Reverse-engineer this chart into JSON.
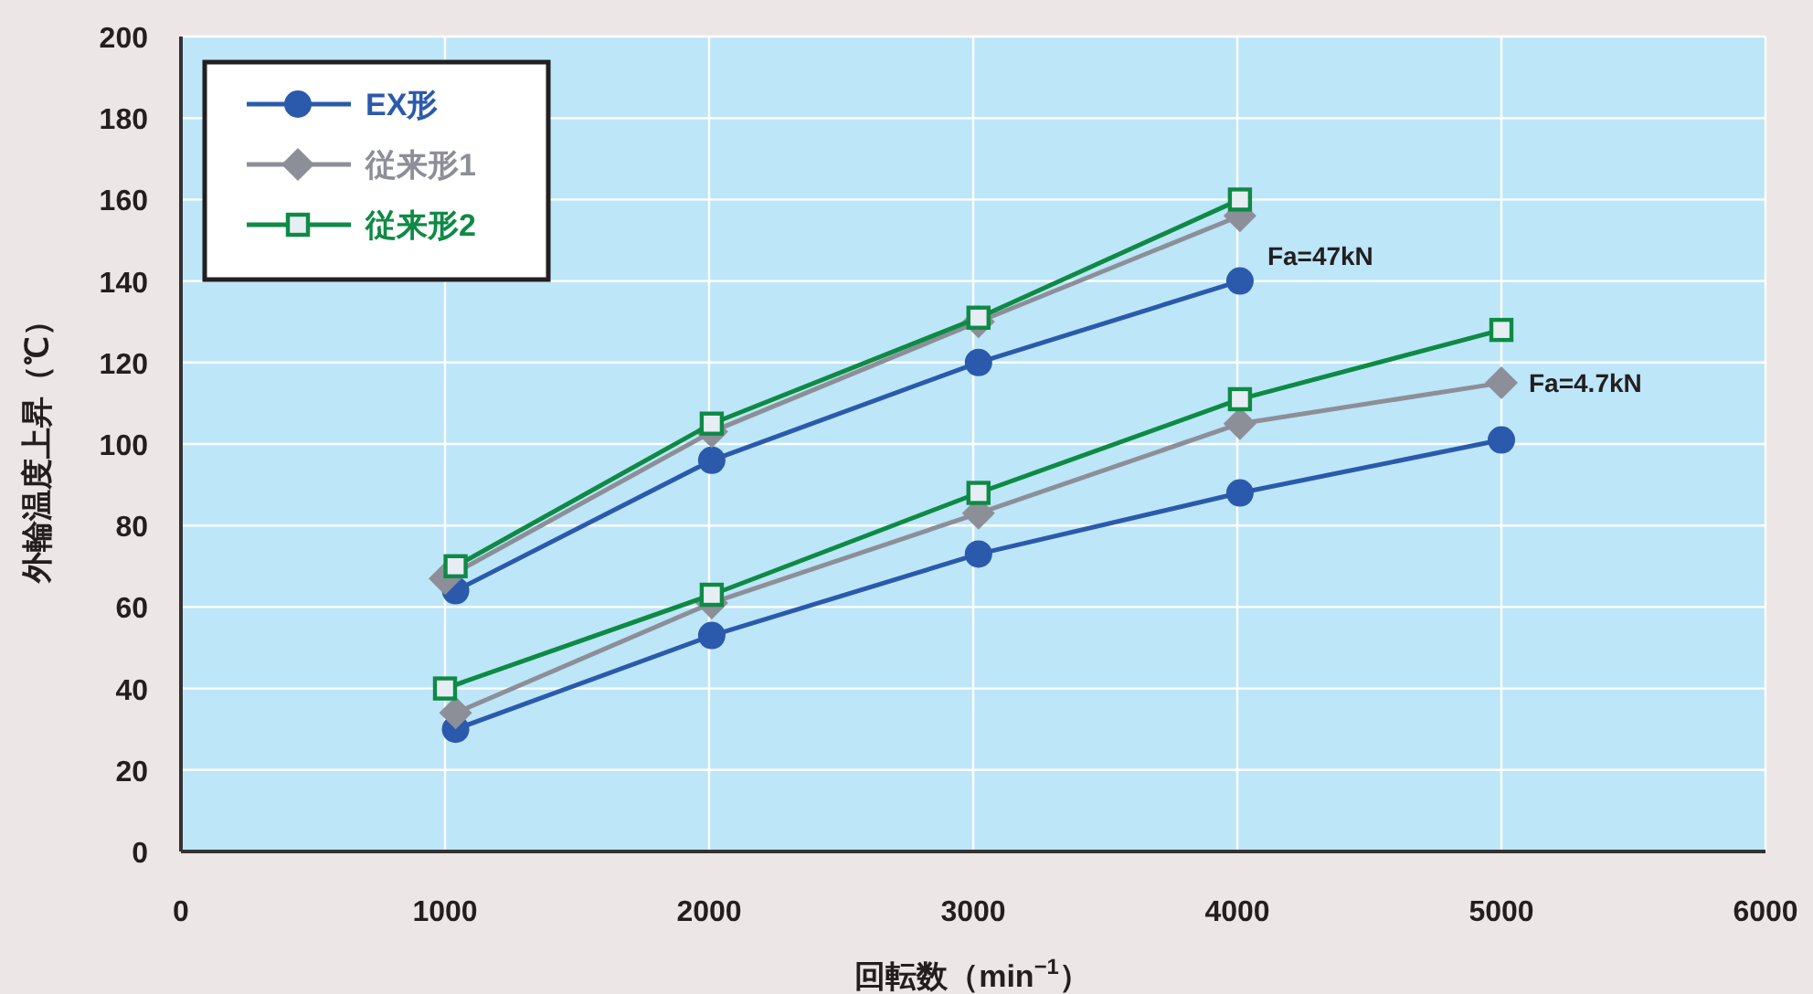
{
  "chart_data": {
    "type": "line",
    "xlabel": "回転数（min$^{−1}$）",
    "ylabel": "外輪温度上昇（℃）",
    "xlim": [
      0,
      6000
    ],
    "xticks": [
      0,
      1000,
      2000,
      3000,
      4000,
      5000,
      6000
    ],
    "ylim": [
      0,
      200
    ],
    "yticks": [
      0,
      20,
      40,
      60,
      80,
      100,
      120,
      140,
      160,
      180,
      200
    ],
    "grid": true,
    "legend": "top left",
    "series": [
      {
        "name": "EX形",
        "color": "#2b5aac",
        "marker": "circle",
        "x": [
          1040,
          2010,
          3020,
          4010
        ],
        "values": [
          64,
          96,
          120,
          140
        ]
      },
      {
        "name": "従来形1",
        "color": "#8c8f98",
        "marker": "diamond",
        "x": [
          1000,
          2010,
          3020,
          4010
        ],
        "values": [
          67,
          103,
          130,
          156
        ]
      },
      {
        "name": "従来形2",
        "color": "#0e8a45",
        "marker": "square",
        "x": [
          1040,
          2010,
          3020,
          4010
        ],
        "values": [
          70,
          105,
          131,
          160
        ]
      },
      {
        "color": "#2b5aac",
        "marker": "circle",
        "x": [
          1040,
          2010,
          3020,
          4010,
          5000
        ],
        "values": [
          30,
          53,
          73,
          88,
          101
        ]
      },
      {
        "color": "#8c8f98",
        "marker": "diamond",
        "x": [
          1040,
          2010,
          3020,
          4010,
          5000
        ],
        "values": [
          34,
          61,
          83,
          105,
          115
        ]
      },
      {
        "color": "#0e8a45",
        "marker": "square",
        "x": [
          1000,
          2010,
          3020,
          4010,
          5000
        ],
        "values": [
          40,
          63,
          88,
          111,
          128
        ]
      }
    ],
    "annotations": [
      {
        "text": "Fa=47kN",
        "x": 4010,
        "y": 156
      },
      {
        "text": "Fa=4.7kN",
        "x": 5000,
        "y": 115
      }
    ]
  }
}
